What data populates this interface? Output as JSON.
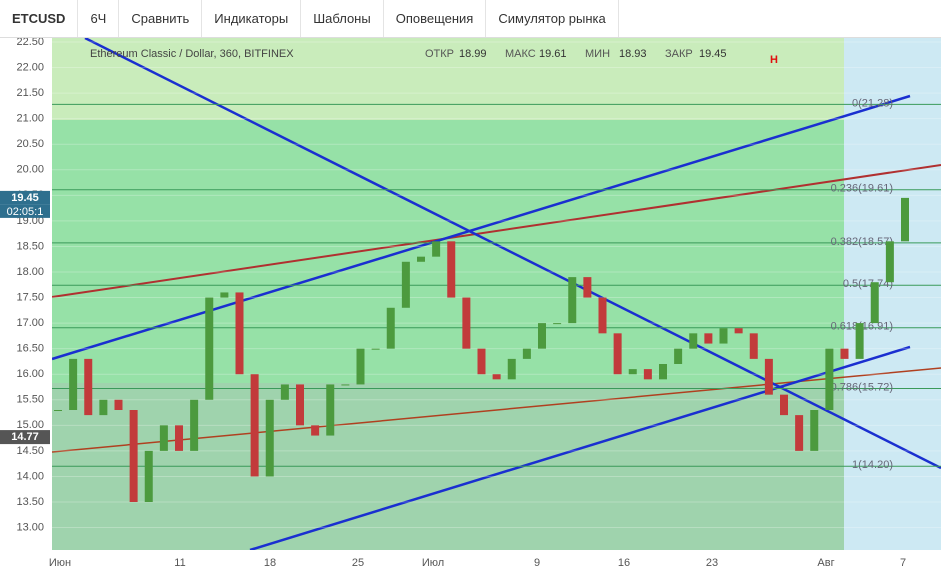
{
  "toolbar": {
    "symbol": "ETCUSD",
    "interval": "6Ч",
    "items": [
      "Сравнить",
      "Индикаторы",
      "Шаблоны",
      "Оповещения",
      "Симулятор рынка"
    ]
  },
  "legend": {
    "title": "Ethereum Classic / Dollar, 360, BITFINEX",
    "fields": [
      {
        "label": "ОТКР",
        "value": 18.99
      },
      {
        "label": "МАКС",
        "value": 19.61
      },
      {
        "label": "МИН",
        "value": 18.93
      },
      {
        "label": "ЗАКР",
        "value": 19.45
      }
    ]
  },
  "marker": "H",
  "chart_data": {
    "type": "candlestick",
    "ylim": [
      12.6,
      22.5
    ],
    "yticks": [
      {
        "value": 22.5,
        "label": "22.50"
      },
      {
        "value": 22,
        "label": "22.00"
      },
      {
        "value": 21.5,
        "label": "21.50"
      },
      {
        "value": 21,
        "label": "21.00"
      },
      {
        "value": 20.5,
        "label": "20.50"
      },
      {
        "value": 20,
        "label": "20.00"
      },
      {
        "value": 19.5,
        "label": "19.50"
      },
      {
        "value": 19,
        "label": "19.00"
      },
      {
        "value": 18.5,
        "label": "18.50"
      },
      {
        "value": 18,
        "label": "18.00"
      },
      {
        "value": 17.5,
        "label": "17.50"
      },
      {
        "value": 17,
        "label": "17.00"
      },
      {
        "value": 16.5,
        "label": "16.50"
      },
      {
        "value": 16,
        "label": "16.00"
      },
      {
        "value": 15.5,
        "label": "15.50"
      },
      {
        "value": 15,
        "label": "15.00"
      },
      {
        "value": 14.5,
        "label": "14.50"
      },
      {
        "value": 14,
        "label": "14.00"
      },
      {
        "value": 13.5,
        "label": "13.50"
      },
      {
        "value": 13,
        "label": "13.00"
      }
    ],
    "x_labels": [
      "Июн",
      "11",
      "18",
      "25",
      "Июл",
      "9",
      "16",
      "23",
      "Авг",
      "7"
    ],
    "closes": [
      15.3,
      16.3,
      15.2,
      15.5,
      15.3,
      13.5,
      14.5,
      15.0,
      14.5,
      15.5,
      17.5,
      17.6,
      16.0,
      14.0,
      15.5,
      15.8,
      15.0,
      14.8,
      15.8,
      15.8,
      16.5,
      16.5,
      17.3,
      18.2,
      18.3,
      18.6,
      17.5,
      16.5,
      16.0,
      15.9,
      16.3,
      16.5,
      17.0,
      17.0,
      17.9,
      17.5,
      16.8,
      16.0,
      16.1,
      15.9,
      16.2,
      16.5,
      16.8,
      16.6,
      16.9,
      16.8,
      16.3,
      15.6,
      15.2,
      14.5,
      15.3,
      16.5,
      16.3,
      17.0,
      17.8,
      18.6,
      19.45
    ],
    "price_labels": [
      {
        "value": 19.45,
        "label": "19.45"
      },
      {
        "value": 14.77,
        "label": "14.77"
      }
    ],
    "countdown": "02:05:1",
    "fib": [
      {
        "value": 21.28,
        "label": "0(21.28)"
      },
      {
        "value": 19.61,
        "label": "0.236(19.61)"
      },
      {
        "value": 18.57,
        "label": "0.382(18.57)"
      },
      {
        "value": 17.74,
        "label": "0.5(17.74)"
      },
      {
        "value": 16.91,
        "label": "0.618(16.91)"
      },
      {
        "value": 15.72,
        "label": "0.786(15.72)"
      },
      {
        "value": 14.2,
        "label": "1(14.20)"
      }
    ]
  }
}
